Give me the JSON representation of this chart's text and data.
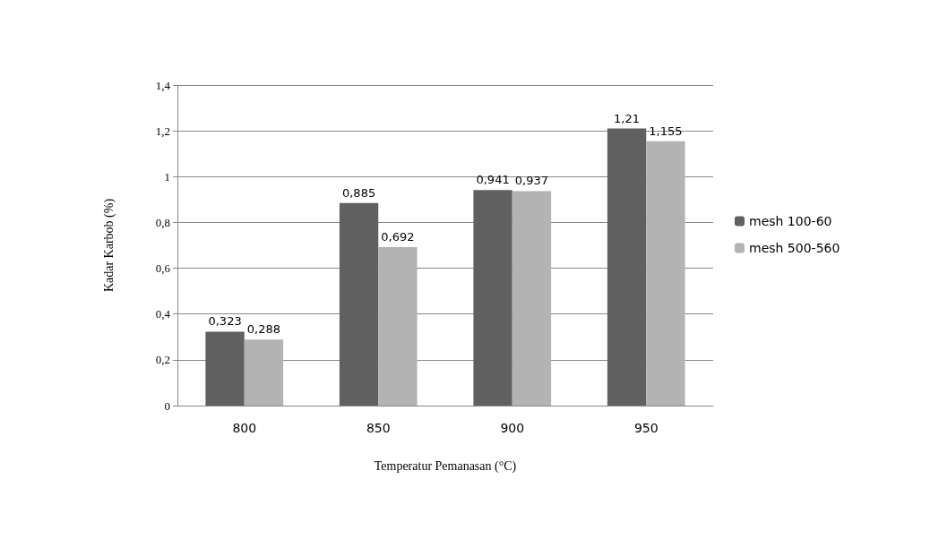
{
  "chart_data": {
    "type": "bar",
    "xlabel": "Temperatur Pemanasan (°C)",
    "ylabel": "Kadar Karbob (%)",
    "categories": [
      "800",
      "850",
      "900",
      "950"
    ],
    "series": [
      {
        "name": "mesh 100-60",
        "color": "#606060",
        "values": [
          0.323,
          0.885,
          0.941,
          1.21
        ],
        "value_labels": [
          "0,323",
          "0,885",
          "0,941",
          "1,21"
        ]
      },
      {
        "name": "mesh 500-560",
        "color": "#b3b3b3",
        "values": [
          0.288,
          0.692,
          0.937,
          1.155
        ],
        "value_labels": [
          "0,288",
          "0,692",
          "0,937",
          "1,155"
        ]
      }
    ],
    "ylim": [
      0,
      1.4
    ],
    "yticks": [
      0,
      {
        "value": 0.2,
        "label": "0,2"
      },
      {
        "value": 0.4,
        "label": "0,4"
      },
      {
        "value": 0.6,
        "label": "0,6"
      },
      {
        "value": 0.8,
        "label": "0,8"
      },
      1,
      {
        "value": 1.2,
        "label": "1,2"
      },
      {
        "value": 1.4,
        "label": "1,4"
      }
    ],
    "grid": "y",
    "legend": "right"
  }
}
